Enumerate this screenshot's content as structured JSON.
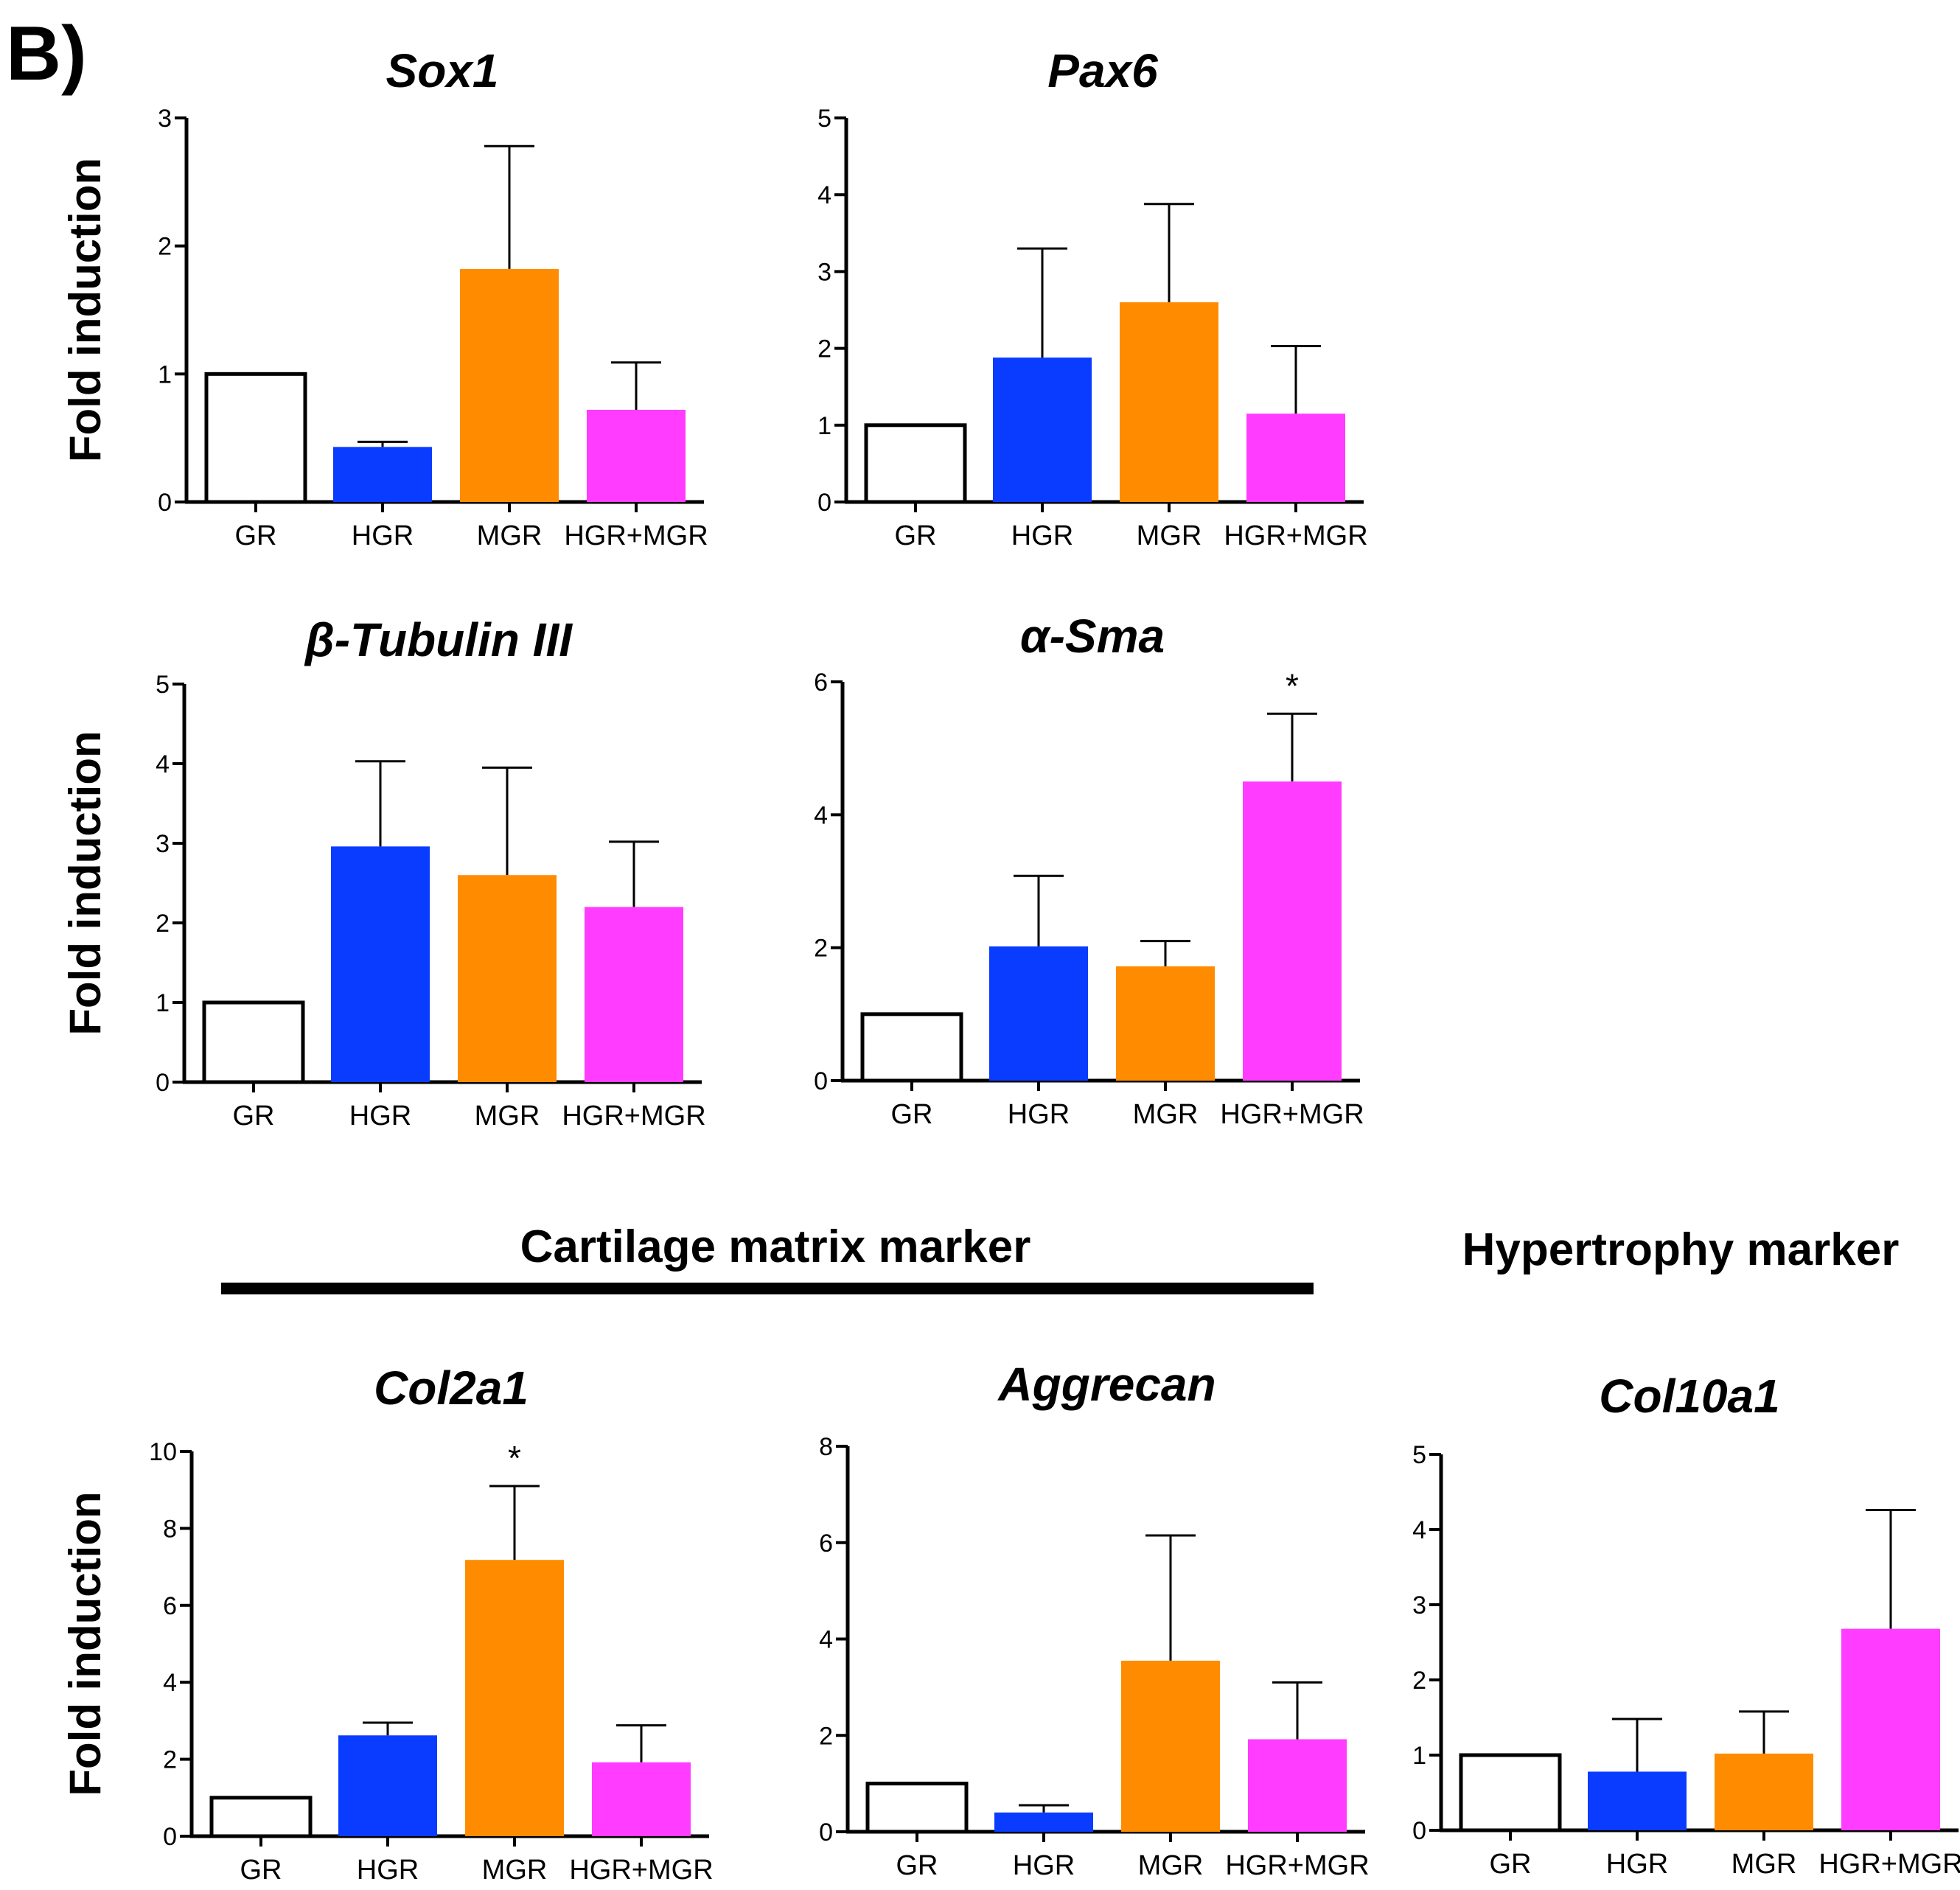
{
  "panel_label": "B)",
  "sections": {
    "cartilage": "Cartilage matrix marker",
    "hypertrophy": "Hypertrophy marker"
  },
  "colors": {
    "GR": "#ffffff",
    "HGR": "#0a3cff",
    "MGR": "#ff8c00",
    "HGR+MGR": "#ff3cff"
  },
  "chart_data": [
    {
      "type": "bar",
      "title": "Sox1",
      "ylabel": "Fold induction",
      "categories": [
        "GR",
        "HGR",
        "MGR",
        "HGR+MGR"
      ],
      "values": [
        1.0,
        0.43,
        1.82,
        0.72
      ],
      "errors": [
        0,
        0.04,
        0.96,
        0.37
      ],
      "significance": [
        "",
        "",
        "",
        ""
      ],
      "ylim": [
        0,
        3
      ],
      "yticks": [
        0,
        1,
        2,
        3
      ]
    },
    {
      "type": "bar",
      "title": "Pax6",
      "ylabel": "",
      "categories": [
        "GR",
        "HGR",
        "MGR",
        "HGR+MGR"
      ],
      "values": [
        1.0,
        1.88,
        2.6,
        1.15
      ],
      "errors": [
        0,
        1.42,
        1.28,
        0.88
      ],
      "significance": [
        "",
        "",
        "",
        ""
      ],
      "ylim": [
        0,
        5
      ],
      "yticks": [
        0,
        1,
        2,
        3,
        4,
        5
      ]
    },
    {
      "type": "bar",
      "title": "β-Tubulin III",
      "ylabel": "Fold induction",
      "categories": [
        "GR",
        "HGR",
        "MGR",
        "HGR+MGR"
      ],
      "values": [
        1.0,
        2.96,
        2.6,
        2.2
      ],
      "errors": [
        0,
        1.07,
        1.35,
        0.82
      ],
      "significance": [
        "",
        "",
        "",
        ""
      ],
      "ylim": [
        0,
        5
      ],
      "yticks": [
        0,
        1,
        2,
        3,
        4,
        5
      ]
    },
    {
      "type": "bar",
      "title": "α-Sma",
      "ylabel": "",
      "categories": [
        "GR",
        "HGR",
        "MGR",
        "HGR+MGR"
      ],
      "values": [
        1.0,
        2.02,
        1.72,
        4.5
      ],
      "errors": [
        0,
        1.06,
        0.38,
        1.02
      ],
      "significance": [
        "",
        "",
        "",
        "*"
      ],
      "ylim": [
        0,
        6
      ],
      "yticks": [
        0,
        2,
        4,
        6
      ]
    },
    {
      "type": "bar",
      "title": "Col2a1",
      "ylabel": "Fold induction",
      "categories": [
        "GR",
        "HGR",
        "MGR",
        "HGR+MGR"
      ],
      "values": [
        1.0,
        2.62,
        7.18,
        1.92
      ],
      "errors": [
        0,
        0.33,
        1.92,
        0.96
      ],
      "significance": [
        "",
        "",
        "*",
        ""
      ],
      "ylim": [
        0,
        10
      ],
      "yticks": [
        0,
        2,
        4,
        6,
        8,
        10
      ]
    },
    {
      "type": "bar",
      "title": "Aggrecan",
      "ylabel": "",
      "categories": [
        "GR",
        "HGR",
        "MGR",
        "HGR+MGR"
      ],
      "values": [
        1.0,
        0.4,
        3.55,
        1.92
      ],
      "errors": [
        0,
        0.15,
        2.6,
        1.18
      ],
      "significance": [
        "",
        "",
        "",
        ""
      ],
      "ylim": [
        0,
        8
      ],
      "yticks": [
        0,
        2,
        4,
        6,
        8
      ]
    },
    {
      "type": "bar",
      "title": "Col10a1",
      "ylabel": "",
      "categories": [
        "GR",
        "HGR",
        "MGR",
        "HGR+MGR"
      ],
      "values": [
        1.0,
        0.78,
        1.02,
        2.68
      ],
      "errors": [
        0,
        0.7,
        0.56,
        1.58
      ],
      "significance": [
        "",
        "",
        "",
        ""
      ],
      "ylim": [
        0,
        5
      ],
      "yticks": [
        0,
        1,
        2,
        3,
        4,
        5
      ]
    }
  ]
}
